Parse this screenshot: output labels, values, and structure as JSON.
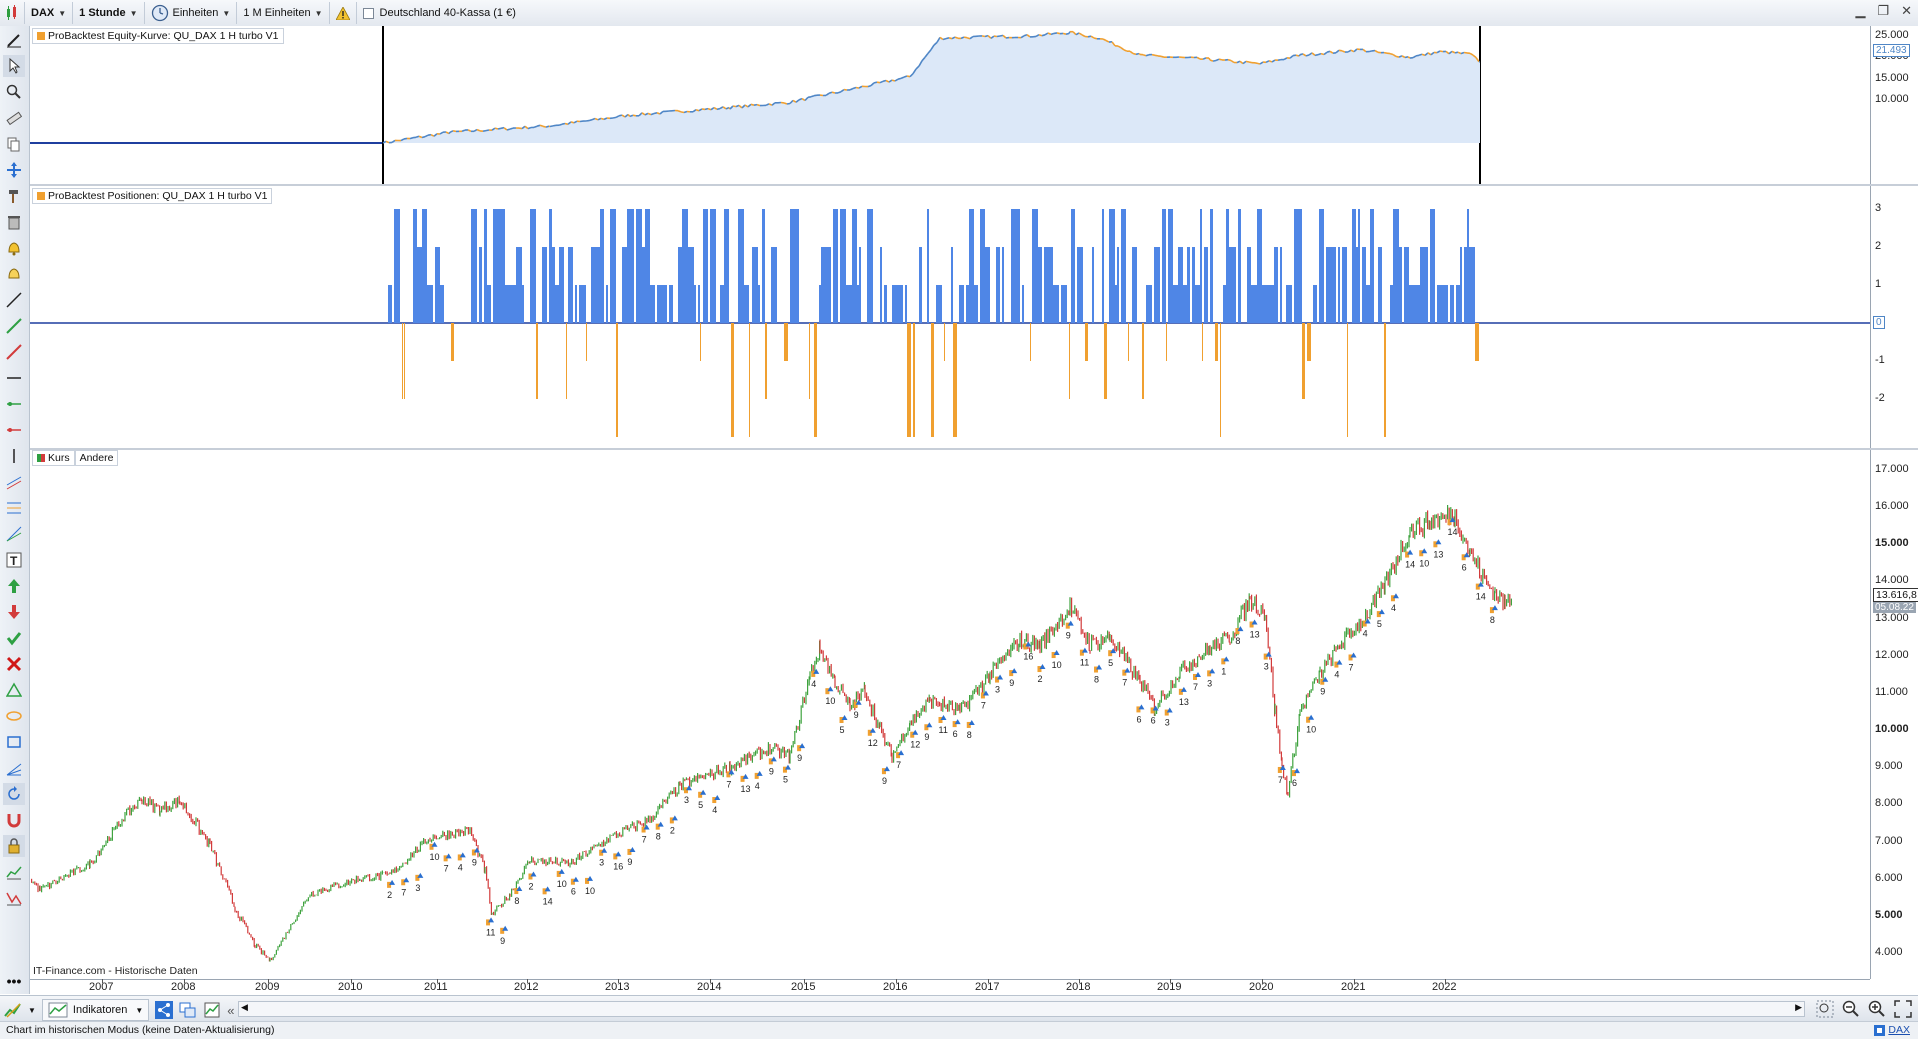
{
  "toolbar": {
    "instrument": "DAX",
    "timeframe": "1 Stunde",
    "units_label": "Einheiten",
    "unit_count": "1 M Einheiten",
    "instrument_name": "Deutschland 40-Kassa (1 €)"
  },
  "equity_panel": {
    "title": "ProBacktest Equity-Kurve: QU_DAX 1 H turbo V1",
    "ticks": [
      "25.000",
      "20.000",
      "15.000",
      "10.000"
    ],
    "last_value": "21.493",
    "colors": {
      "up": "#4f86c6",
      "down": "#f0a030",
      "fill": "#dce8f8"
    }
  },
  "positions_panel": {
    "title": "ProBacktest Positionen: QU_DAX 1 H turbo V1",
    "ticks": [
      "3",
      "2",
      "1",
      "-1",
      "-2"
    ],
    "last_value": "0",
    "colors": {
      "long": "#4f86e6",
      "short": "#f0a030"
    }
  },
  "price_panel": {
    "tab_kurs": "Kurs",
    "tab_andere": "Andere",
    "ticks": [
      "17.000",
      "16.000",
      "15.000",
      "14.000",
      "13.000",
      "12.000",
      "11.000",
      "10.000",
      "9.000",
      "8.000",
      "7.000",
      "6.000",
      "5.000",
      "4.000"
    ],
    "last_price": "13.616,8",
    "last_date": "05.08.22",
    "source": "IT-Finance.com - Historische Daten",
    "trade_counts": [
      "2",
      "7",
      "3",
      "10",
      "7",
      "4",
      "9",
      "11",
      "9",
      "8",
      "2",
      "14",
      "10",
      "6",
      "10",
      "3",
      "16",
      "9",
      "7",
      "8",
      "2",
      "3",
      "5",
      "4",
      "7",
      "13",
      "4",
      "9",
      "5",
      "9",
      "4",
      "10",
      "5",
      "9",
      "12",
      "9",
      "7",
      "12",
      "9",
      "11",
      "6",
      "8",
      "7",
      "3",
      "9",
      "16",
      "2",
      "10",
      "9",
      "11",
      "8",
      "5",
      "7",
      "6",
      "6",
      "3",
      "13",
      "7",
      "3",
      "1",
      "8",
      "13",
      "3",
      "7",
      "6",
      "10",
      "9",
      "4",
      "7",
      "4",
      "5",
      "4",
      "14",
      "10",
      "13",
      "14",
      "6",
      "14",
      "8"
    ]
  },
  "x_axis": {
    "years": [
      "2007",
      "2008",
      "2009",
      "2010",
      "2011",
      "2012",
      "2013",
      "2014",
      "2015",
      "2016",
      "2017",
      "2018",
      "2019",
      "2020",
      "2021",
      "2022"
    ]
  },
  "bottom": {
    "indicators_label": "Indikatoren"
  },
  "status": {
    "message": "Chart im historischen Modus (keine Daten-Aktualisierung)",
    "symbol": "DAX"
  }
}
